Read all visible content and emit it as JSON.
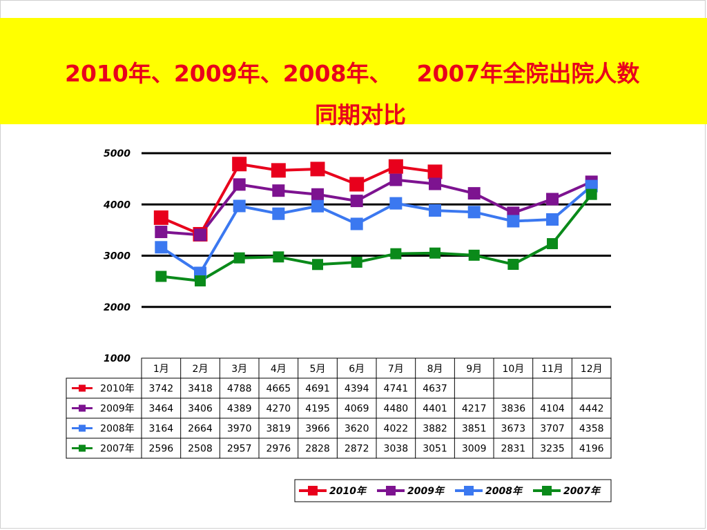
{
  "title": {
    "line1_part1": "2010年、2009年、2008年、",
    "line1_part2": "2007年全院出院人数",
    "line2": "同期对比"
  },
  "colors": {
    "title_bg": "#ffff00",
    "title_text": "#e8001c",
    "series": [
      "#e8001c",
      "#7d1390",
      "#3b78f0",
      "#0a8a1a"
    ]
  },
  "chart_data": {
    "type": "line",
    "title": "2010年、2009年、2008年、 2007年全院出院人数同期对比",
    "categories": [
      "1月",
      "2月",
      "3月",
      "4月",
      "5月",
      "6月",
      "7月",
      "8月",
      "9月",
      "10月",
      "11月",
      "12月"
    ],
    "ylim": [
      1000,
      5000
    ],
    "yticks": [
      "5000",
      "4000",
      "3000",
      "2000",
      "1000"
    ],
    "grid": true,
    "legend_position": "bottom-right",
    "data_table": true,
    "series": [
      {
        "name": "2010年",
        "values": [
          3742,
          3418,
          4788,
          4665,
          4691,
          4394,
          4741,
          4637,
          null,
          null,
          null,
          null
        ]
      },
      {
        "name": "2009年",
        "values": [
          3464,
          3406,
          4389,
          4270,
          4195,
          4069,
          4480,
          4401,
          4217,
          3836,
          4104,
          4442
        ]
      },
      {
        "name": "2008年",
        "values": [
          3164,
          2664,
          3970,
          3819,
          3966,
          3620,
          4022,
          3882,
          3851,
          3673,
          3707,
          4358
        ]
      },
      {
        "name": "2007年",
        "values": [
          2596,
          2508,
          2957,
          2976,
          2828,
          2872,
          3038,
          3051,
          3009,
          2831,
          3235,
          4196
        ]
      }
    ]
  }
}
